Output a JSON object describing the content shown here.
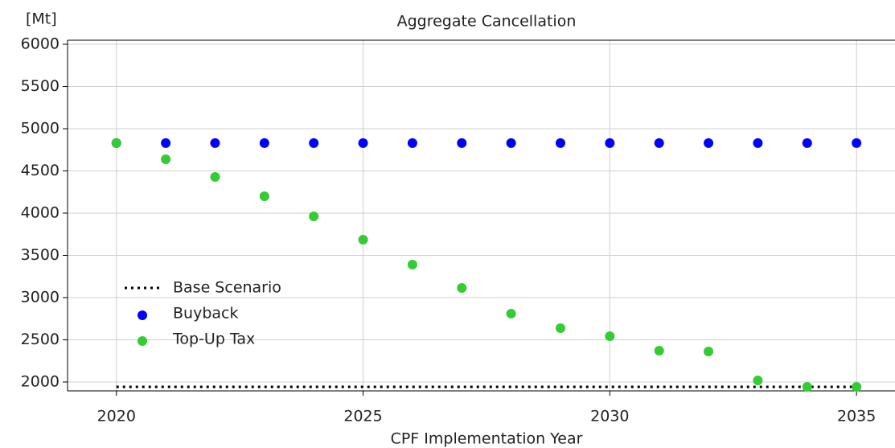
{
  "chart_data": {
    "type": "scatter",
    "title": "Aggregate Cancellation",
    "y_label": "[Mt]",
    "x_label": "CPF Implementation Year",
    "x": [
      2020,
      2021,
      2022,
      2023,
      2024,
      2025,
      2026,
      2027,
      2028,
      2029,
      2030,
      2031,
      2032,
      2033,
      2034,
      2035
    ],
    "series": [
      {
        "name": "Base Scenario",
        "color": "#000000",
        "kind": "dotted-line",
        "values": [
          1943,
          1943,
          1943,
          1943,
          1943,
          1943,
          1943,
          1943,
          1943,
          1943,
          1943,
          1943,
          1943,
          1943,
          1943,
          1943
        ]
      },
      {
        "name": "Buyback",
        "color": "#0000ff",
        "kind": "points",
        "values": [
          4830,
          4830,
          4830,
          4830,
          4830,
          4830,
          4830,
          4830,
          4830,
          4830,
          4830,
          4830,
          4830,
          4830,
          4830,
          4830
        ]
      },
      {
        "name": "Top-Up Tax",
        "color": "#33cc33",
        "kind": "points",
        "values": [
          4830,
          4638,
          4429,
          4200,
          3962,
          3686,
          3390,
          3114,
          2810,
          2638,
          2543,
          2371,
          2362,
          2019,
          1943,
          1943
        ]
      }
    ],
    "xlim": [
      2019.01,
      2035.78
    ],
    "xticks": [
      2020,
      2025,
      2030,
      2035
    ],
    "ylim": [
      1895,
      6048
    ],
    "yticks": [
      2000,
      2500,
      3000,
      3500,
      4000,
      4500,
      5000,
      5500,
      6000
    ],
    "grid": true,
    "legend": "center left"
  }
}
